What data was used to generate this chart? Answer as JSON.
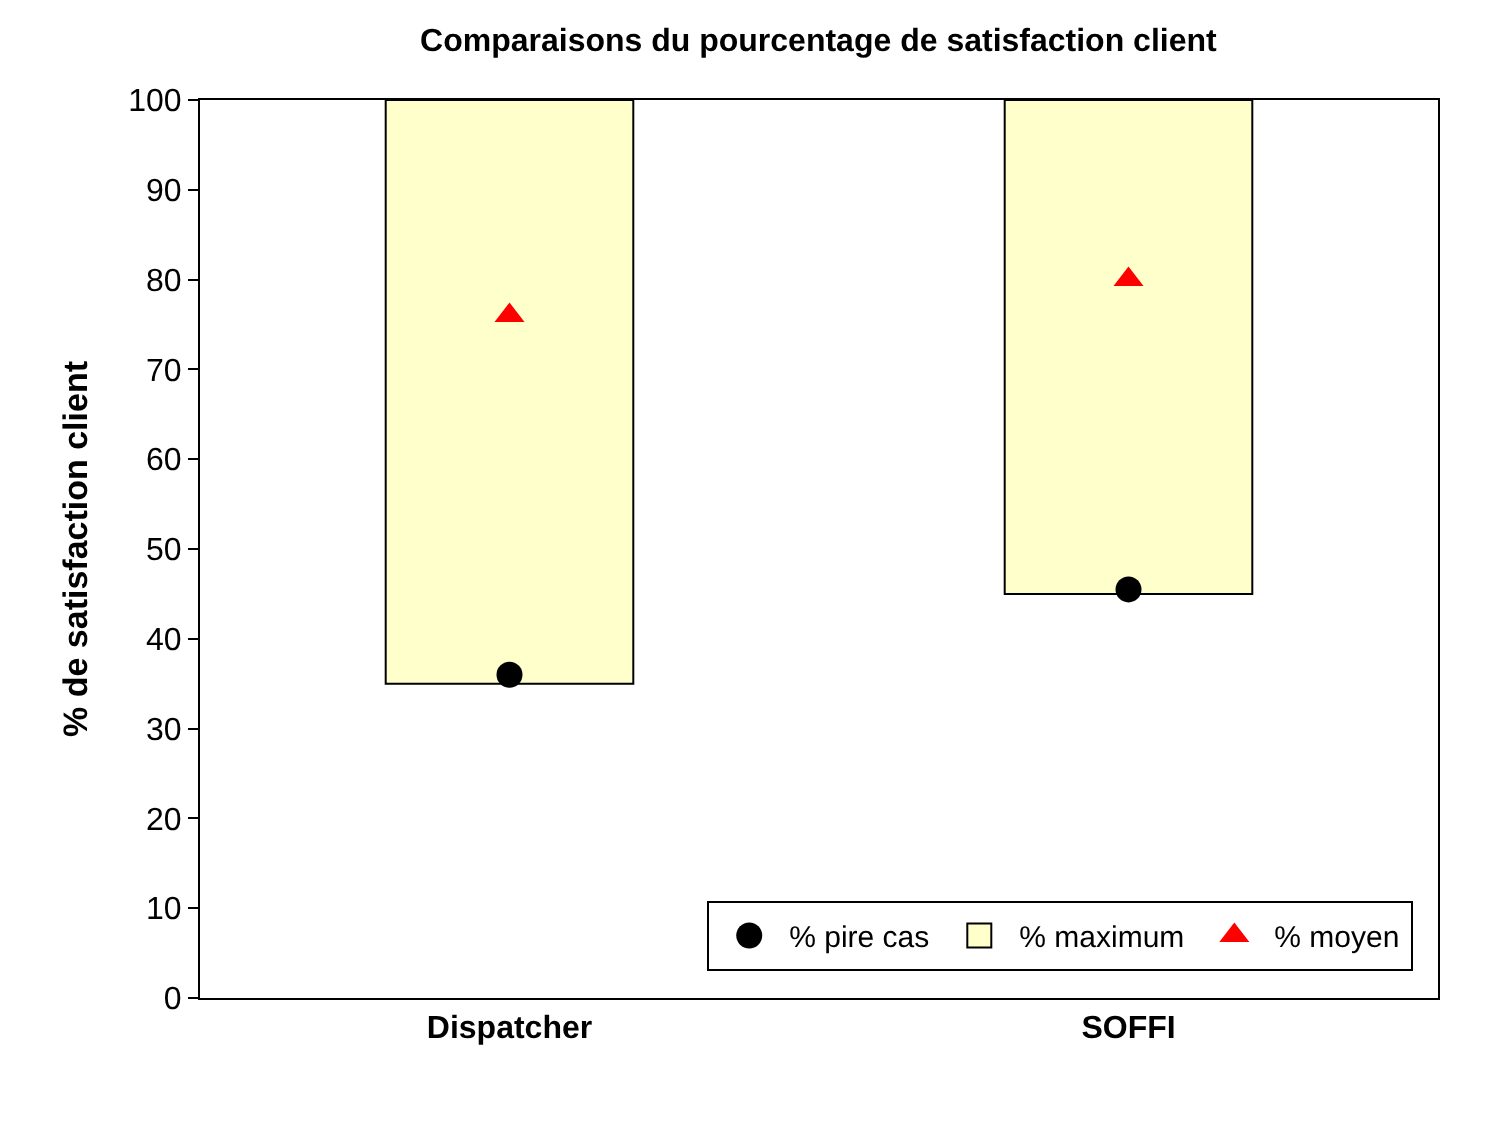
{
  "chart_data": {
    "type": "bar",
    "title": "Comparaisons du pourcentage de satisfaction client",
    "ylabel": "% de satisfaction client",
    "categories": [
      "Dispatcher",
      "SOFFI"
    ],
    "series": [
      {
        "name": "% pire cas",
        "type": "scatter",
        "marker": "circle",
        "color": "#000000",
        "values": [
          36,
          45.5
        ]
      },
      {
        "name": "% maximum",
        "color": "#ffffcc",
        "values": [
          65,
          55
        ],
        "base": [
          35,
          45
        ]
      },
      {
        "name": "% moyen",
        "type": "scatter",
        "marker": "triangle",
        "color": "#ff0000",
        "values": [
          76,
          80
        ]
      }
    ],
    "ylim": [
      0,
      100
    ],
    "yticks": [
      0,
      10,
      20,
      30,
      40,
      50,
      60,
      70,
      80,
      90,
      100
    ],
    "grid": false,
    "legend": "bottom right"
  }
}
